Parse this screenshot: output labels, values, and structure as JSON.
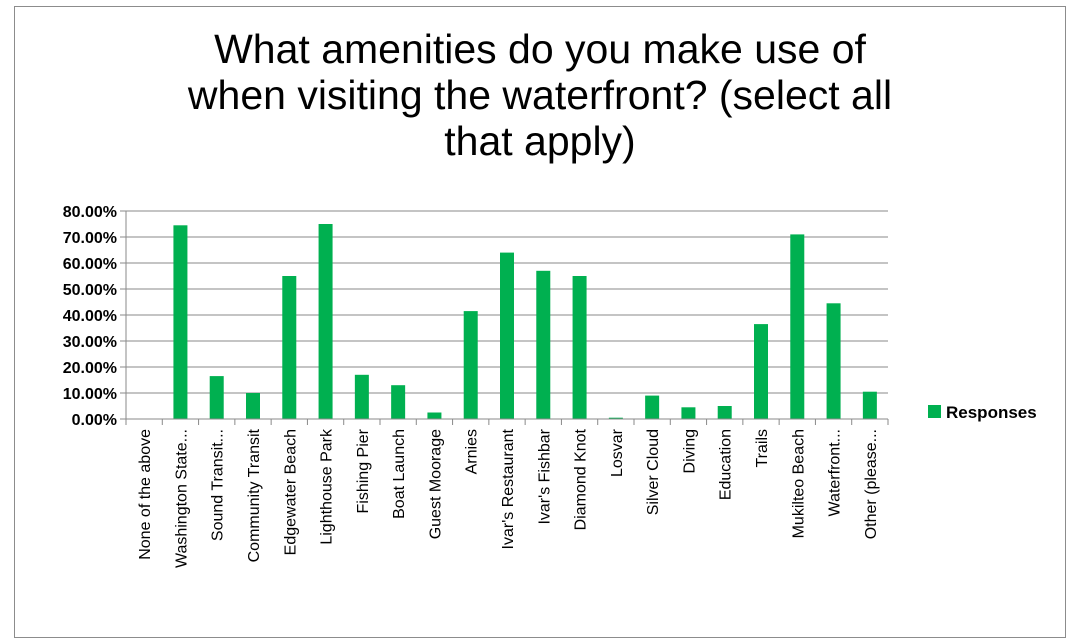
{
  "chart_data": {
    "type": "bar",
    "title_lines": [
      "What amenities do you make use of",
      "when visiting the waterfront? (select all",
      "that apply)"
    ],
    "xlabel": "",
    "ylabel": "",
    "ylim": [
      0,
      80
    ],
    "yticks": [
      "0.00%",
      "10.00%",
      "20.00%",
      "30.00%",
      "40.00%",
      "50.00%",
      "60.00%",
      "70.00%",
      "80.00%"
    ],
    "grid": true,
    "legend_position": "right",
    "categories": [
      "None of the above",
      "Washington State...",
      "Sound Transit...",
      "Community Transit",
      "Edgewater Beach",
      "Lighthouse Park",
      "Fishing Pier",
      "Boat Launch",
      "Guest Moorage",
      "Arnies",
      "Ivar's Restaurant",
      "Ivar's Fishbar",
      "Diamond Knot",
      "Losvar",
      "Silver Cloud",
      "Diving",
      "Education",
      "Trails",
      "Mukilteo Beach",
      "Waterfront...",
      "Other (please..."
    ],
    "series": [
      {
        "name": "Responses",
        "color": "#00b050",
        "values": [
          0,
          74.5,
          16.5,
          10,
          55,
          75,
          17,
          13,
          2.5,
          41.5,
          64,
          57,
          55,
          0.5,
          9,
          4.5,
          5,
          36.5,
          71,
          44.5,
          10.5
        ]
      }
    ]
  }
}
